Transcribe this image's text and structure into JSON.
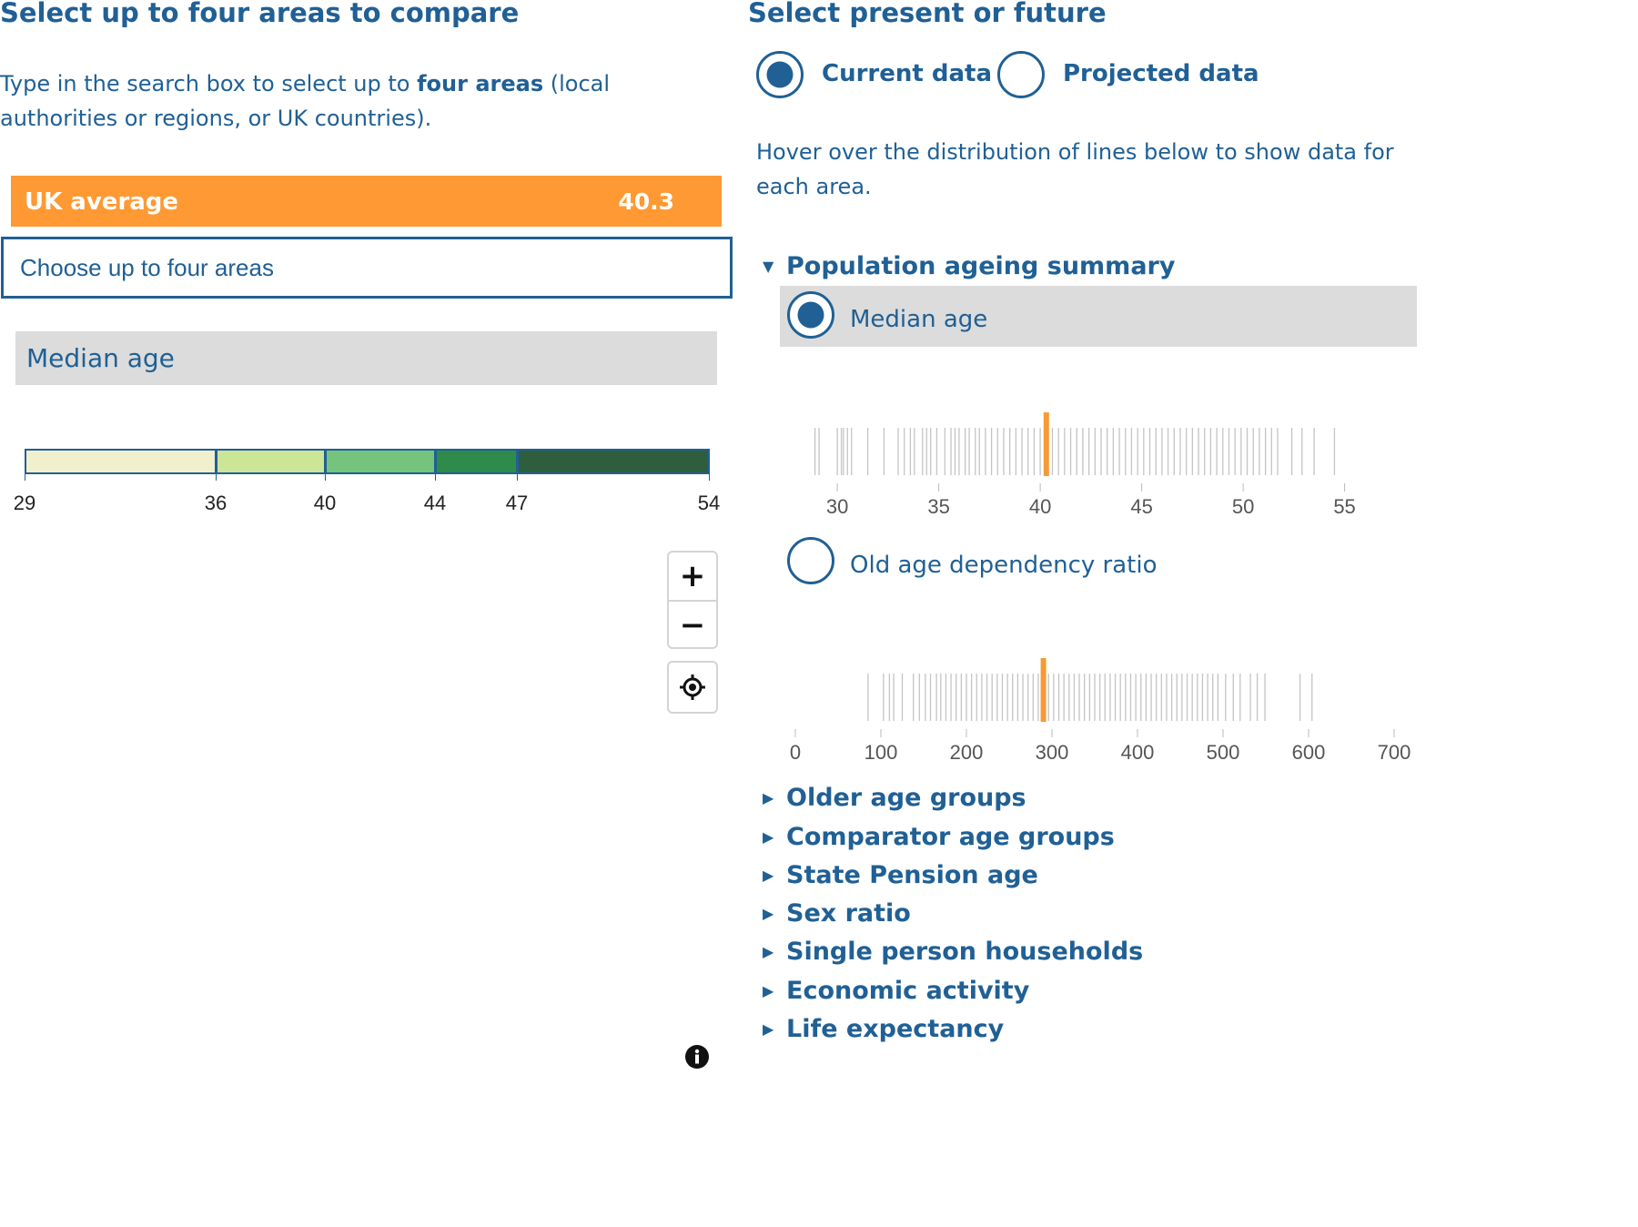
{
  "left": {
    "title": "Select up to four areas to compare",
    "intro_pre": "Type in the search box to select up to ",
    "intro_bold": "four areas",
    "intro_post": " (local authorities or regions, or UK countries).",
    "uk_average": {
      "label": "UK average",
      "value": "40.3"
    },
    "search": {
      "placeholder": "Choose up to four areas"
    },
    "indicator_name": "Median age",
    "legend": {
      "breaks": [
        "29",
        "36",
        "40",
        "44",
        "47",
        "54"
      ],
      "colors": [
        "#f0f0cc",
        "#cce597",
        "#74c47d",
        "#2e8b4a",
        "#2f5e3e"
      ]
    },
    "map_controls": {
      "zoom_in": "+",
      "zoom_out": "−"
    }
  },
  "right": {
    "title": "Select present or future",
    "options": [
      {
        "label": "Current data",
        "selected": true
      },
      {
        "label": "Projected data",
        "selected": false
      }
    ],
    "hover_text": "Hover over the distribution of lines below to show data for each area.",
    "summary": {
      "heading": "Population ageing summary",
      "expanded": true,
      "items": [
        {
          "label": "Median age",
          "selected": true
        },
        {
          "label": "Old age dependency ratio",
          "selected": false
        }
      ]
    },
    "collapsed_sections": [
      "Older age groups",
      "Comparator age groups",
      "State Pension age",
      "Sex ratio",
      "Single person households",
      "Economic activity",
      "Life expectancy"
    ]
  },
  "chart_data": [
    {
      "type": "strip",
      "indicator": "Median age",
      "xticks": [
        30,
        35,
        40,
        45,
        50,
        55
      ],
      "xlim": [
        28.2,
        57.8
      ],
      "highlight": 40.3,
      "highlight_color": "#f79a35",
      "values": [
        28.9,
        29.1,
        30.0,
        30.2,
        30.3,
        30.5,
        30.7,
        31.5,
        32.3,
        33.0,
        33.3,
        33.6,
        33.8,
        34.2,
        34.4,
        34.6,
        34.9,
        35.3,
        35.6,
        35.8,
        36.0,
        36.3,
        36.5,
        36.8,
        37.0,
        37.3,
        37.6,
        37.9,
        38.2,
        38.5,
        38.8,
        39.1,
        39.4,
        39.7,
        40.0,
        40.3,
        40.6,
        40.9,
        41.2,
        41.5,
        41.8,
        42.1,
        42.4,
        42.7,
        43.0,
        43.3,
        43.6,
        43.9,
        44.2,
        44.5,
        44.8,
        45.1,
        45.4,
        45.7,
        46.0,
        46.3,
        46.6,
        46.9,
        47.2,
        47.5,
        47.8,
        48.1,
        48.4,
        48.7,
        49.0,
        49.3,
        49.6,
        49.9,
        50.2,
        50.5,
        50.8,
        51.1,
        51.4,
        51.7,
        52.4,
        52.9,
        53.5,
        54.5
      ]
    },
    {
      "type": "strip",
      "indicator": "Old age dependency ratio",
      "xticks": [
        0,
        100,
        200,
        300,
        400,
        500,
        600,
        700
      ],
      "xlim": [
        0,
        700
      ],
      "highlight": 290,
      "highlight_color": "#f79a35",
      "values": [
        85,
        103,
        110,
        115,
        125,
        138,
        145,
        152,
        158,
        165,
        170,
        176,
        182,
        188,
        194,
        200,
        206,
        212,
        218,
        224,
        230,
        236,
        242,
        248,
        254,
        260,
        266,
        272,
        278,
        284,
        290,
        296,
        302,
        308,
        314,
        320,
        326,
        332,
        338,
        344,
        350,
        356,
        362,
        368,
        374,
        380,
        386,
        392,
        398,
        404,
        410,
        416,
        422,
        428,
        434,
        440,
        446,
        452,
        458,
        464,
        470,
        476,
        482,
        488,
        494,
        503,
        512,
        520,
        532,
        540,
        549,
        590,
        604
      ]
    }
  ]
}
